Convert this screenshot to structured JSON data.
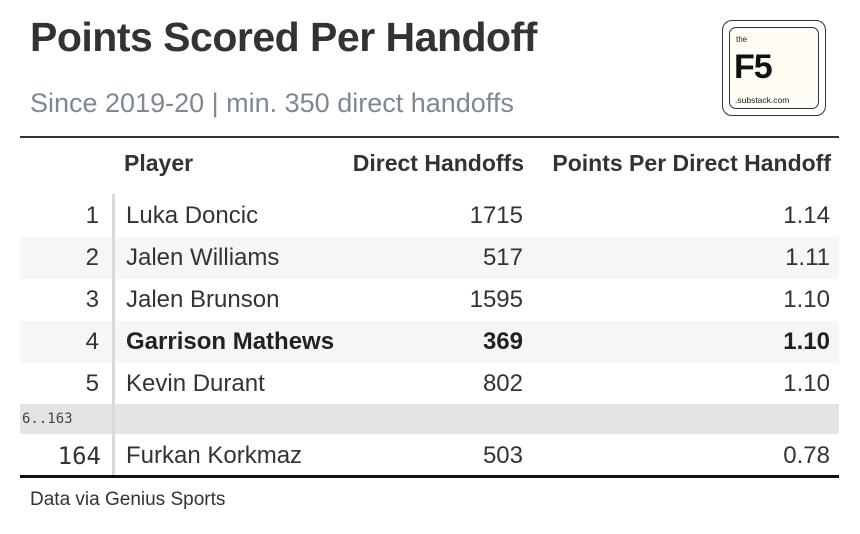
{
  "title": "Points Scored Per Handoff",
  "subtitle": "Since 2019-20 | min. 350 direct handoffs",
  "logo": {
    "the": "the",
    "name": "F5",
    "domain": ".substack.com"
  },
  "columns": {
    "rank": "",
    "player": "Player",
    "handoffs": "Direct Handoffs",
    "points": "Points Per Direct Handoff"
  },
  "rows": [
    {
      "rank": "1",
      "player": "Luka Doncic",
      "handoffs": "1715",
      "points": "1.14"
    },
    {
      "rank": "2",
      "player": "Jalen Williams",
      "handoffs": "517",
      "points": "1.11"
    },
    {
      "rank": "3",
      "player": "Jalen Brunson",
      "handoffs": "1595",
      "points": "1.10"
    },
    {
      "rank": "4",
      "player": "Garrison Mathews",
      "handoffs": "369",
      "points": "1.10"
    },
    {
      "rank": "5",
      "player": "Kevin Durant",
      "handoffs": "802",
      "points": "1.10"
    }
  ],
  "gap_label": "6..163",
  "last_row": {
    "rank": "164",
    "player": "Furkan Korkmaz",
    "handoffs": "503",
    "points": "0.78"
  },
  "footer": "Data via Genius Sports"
}
